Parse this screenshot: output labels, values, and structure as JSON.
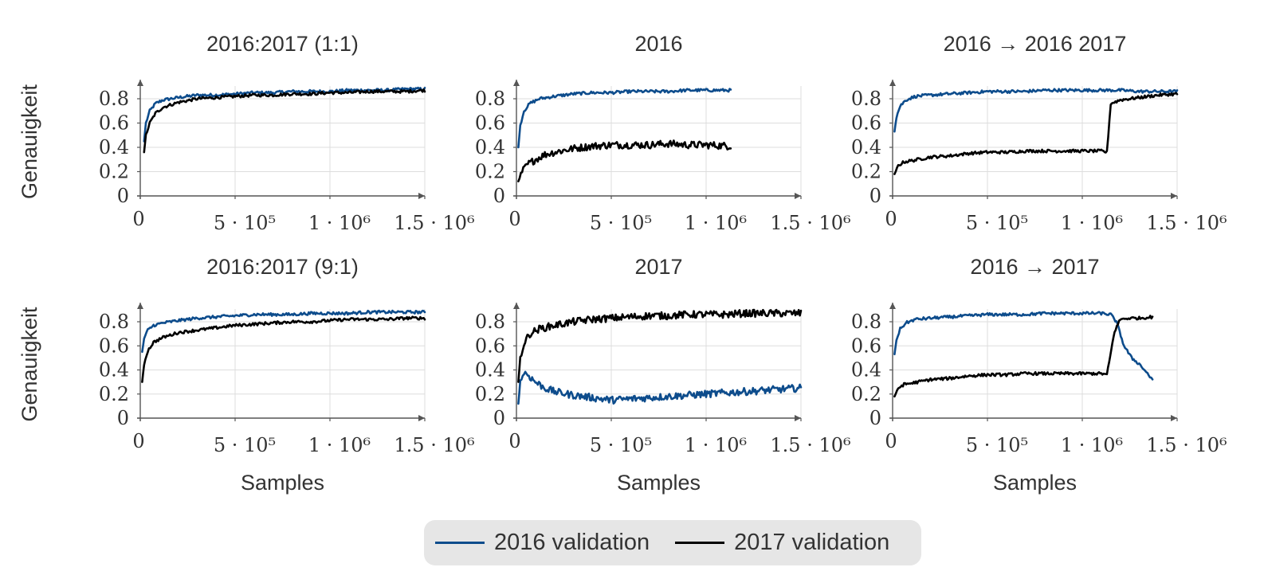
{
  "colors": {
    "2016": "#0d4c8c",
    "2017": "#000000",
    "grid": "#dddddd",
    "axis": "#555555",
    "text": "#333333"
  },
  "legend": {
    "placement": "bottom-center",
    "entries": [
      {
        "label": "2016 validation",
        "color": "#0d4c8c"
      },
      {
        "label": "2017 validation",
        "color": "#000000"
      }
    ]
  },
  "chart_data": [
    {
      "type": "line",
      "id": "p11",
      "title": "2016:2017 (1:1)",
      "ylabel": "Genauigkeit",
      "xlabel": "",
      "xlim": [
        0,
        1500000
      ],
      "ylim": [
        0,
        0.92
      ],
      "xticks": [
        0,
        500000,
        1000000,
        1500000
      ],
      "xtick_labels": [
        "0",
        "5 · 10⁵",
        "1 · 10⁶",
        "1.5 · 10⁶"
      ],
      "yticks": [
        0,
        0.2,
        0.4,
        0.6,
        0.8
      ],
      "ytick_labels": [
        "0",
        "0.2",
        "0.4",
        "0.6",
        "0.8"
      ],
      "grid": true,
      "series": [
        {
          "name": "2016 validation",
          "color": "#0d4c8c",
          "x": [
            20000,
            30000,
            50000,
            80000,
            120000,
            200000,
            300000,
            400000,
            500000,
            600000,
            700000,
            800000,
            900000,
            1000000,
            1100000,
            1200000,
            1300000,
            1400000,
            1500000
          ],
          "y": [
            0.45,
            0.6,
            0.7,
            0.76,
            0.79,
            0.81,
            0.83,
            0.83,
            0.84,
            0.85,
            0.85,
            0.86,
            0.86,
            0.86,
            0.87,
            0.87,
            0.87,
            0.88,
            0.88
          ]
        },
        {
          "name": "2017 validation",
          "color": "#000000",
          "x": [
            20000,
            30000,
            50000,
            80000,
            120000,
            200000,
            300000,
            400000,
            500000,
            600000,
            700000,
            800000,
            900000,
            1000000,
            1100000,
            1200000,
            1300000,
            1400000,
            1500000
          ],
          "y": [
            0.36,
            0.5,
            0.6,
            0.68,
            0.73,
            0.77,
            0.8,
            0.81,
            0.82,
            0.83,
            0.83,
            0.84,
            0.84,
            0.85,
            0.85,
            0.86,
            0.86,
            0.86,
            0.87
          ]
        }
      ]
    },
    {
      "type": "line",
      "id": "p12",
      "title": "2016",
      "ylabel": "",
      "xlabel": "",
      "xlim": [
        0,
        1500000
      ],
      "ylim": [
        0,
        0.92
      ],
      "xticks": [
        0,
        500000,
        1000000,
        1500000
      ],
      "xtick_labels": [
        "0",
        "5 · 10⁵",
        "1 · 10⁶",
        "1.5 · 10⁶"
      ],
      "yticks": [
        0,
        0.2,
        0.4,
        0.6,
        0.8
      ],
      "ytick_labels": [
        "0",
        "0.2",
        "0.4",
        "0.6",
        "0.8"
      ],
      "grid": true,
      "series": [
        {
          "name": "2016 validation",
          "color": "#0d4c8c",
          "x": [
            10000,
            20000,
            40000,
            70000,
            120000,
            200000,
            300000,
            400000,
            500000,
            600000,
            700000,
            800000,
            900000,
            1000000,
            1130000
          ],
          "y": [
            0.4,
            0.58,
            0.7,
            0.76,
            0.8,
            0.82,
            0.84,
            0.85,
            0.85,
            0.86,
            0.86,
            0.86,
            0.87,
            0.87,
            0.87
          ]
        },
        {
          "name": "2017 validation",
          "color": "#000000",
          "x": [
            10000,
            30000,
            60000,
            100000,
            150000,
            200000,
            300000,
            400000,
            500000,
            600000,
            700000,
            800000,
            900000,
            1000000,
            1130000
          ],
          "y": [
            0.12,
            0.2,
            0.26,
            0.3,
            0.34,
            0.36,
            0.39,
            0.41,
            0.42,
            0.42,
            0.42,
            0.43,
            0.42,
            0.42,
            0.41
          ]
        }
      ]
    },
    {
      "type": "line",
      "id": "p13",
      "title": "2016 → 2016 2017",
      "ylabel": "",
      "xlabel": "",
      "xlim": [
        0,
        1500000
      ],
      "ylim": [
        0,
        0.92
      ],
      "xticks": [
        0,
        500000,
        1000000,
        1500000
      ],
      "xtick_labels": [
        "0",
        "5 · 10⁵",
        "1 · 10⁶",
        "1.5 · 10⁶"
      ],
      "yticks": [
        0,
        0.2,
        0.4,
        0.6,
        0.8
      ],
      "ytick_labels": [
        "0",
        "0.2",
        "0.4",
        "0.6",
        "0.8"
      ],
      "grid": true,
      "series": [
        {
          "name": "2016 validation",
          "color": "#0d4c8c",
          "x": [
            10000,
            20000,
            40000,
            70000,
            120000,
            200000,
            300000,
            400000,
            500000,
            600000,
            700000,
            800000,
            900000,
            1000000,
            1100000,
            1200000,
            1300000,
            1400000,
            1500000
          ],
          "y": [
            0.53,
            0.65,
            0.74,
            0.79,
            0.82,
            0.83,
            0.84,
            0.85,
            0.86,
            0.86,
            0.86,
            0.87,
            0.87,
            0.87,
            0.87,
            0.87,
            0.86,
            0.86,
            0.86
          ]
        },
        {
          "name": "2017 validation",
          "color": "#000000",
          "x": [
            10000,
            30000,
            60000,
            100000,
            200000,
            300000,
            400000,
            500000,
            600000,
            700000,
            800000,
            900000,
            1000000,
            1100000,
            1130000,
            1150000,
            1200000,
            1300000,
            1400000,
            1500000
          ],
          "y": [
            0.18,
            0.25,
            0.28,
            0.29,
            0.32,
            0.33,
            0.35,
            0.36,
            0.36,
            0.37,
            0.37,
            0.37,
            0.37,
            0.37,
            0.36,
            0.76,
            0.79,
            0.81,
            0.83,
            0.84
          ]
        }
      ]
    },
    {
      "type": "line",
      "id": "p21",
      "title": "2016:2017 (9:1)",
      "ylabel": "Genauigkeit",
      "xlabel": "Samples",
      "xlim": [
        0,
        1500000
      ],
      "ylim": [
        0,
        0.92
      ],
      "xticks": [
        0,
        500000,
        1000000,
        1500000
      ],
      "xtick_labels": [
        "0",
        "5 · 10⁵",
        "1 · 10⁶",
        "1.5 · 10⁶"
      ],
      "yticks": [
        0,
        0.2,
        0.4,
        0.6,
        0.8
      ],
      "ytick_labels": [
        "0",
        "0.2",
        "0.4",
        "0.6",
        "0.8"
      ],
      "grid": true,
      "series": [
        {
          "name": "2016 validation",
          "color": "#0d4c8c",
          "x": [
            10000,
            20000,
            40000,
            70000,
            120000,
            200000,
            300000,
            400000,
            500000,
            600000,
            700000,
            800000,
            900000,
            1000000,
            1100000,
            1200000,
            1300000,
            1400000,
            1500000
          ],
          "y": [
            0.55,
            0.66,
            0.73,
            0.77,
            0.79,
            0.81,
            0.83,
            0.84,
            0.85,
            0.86,
            0.86,
            0.86,
            0.87,
            0.87,
            0.87,
            0.88,
            0.88,
            0.88,
            0.88
          ]
        },
        {
          "name": "2017 validation",
          "color": "#000000",
          "x": [
            10000,
            20000,
            40000,
            70000,
            120000,
            200000,
            300000,
            400000,
            500000,
            600000,
            700000,
            800000,
            900000,
            1000000,
            1100000,
            1200000,
            1300000,
            1400000,
            1500000
          ],
          "y": [
            0.3,
            0.45,
            0.56,
            0.63,
            0.67,
            0.71,
            0.73,
            0.75,
            0.77,
            0.78,
            0.79,
            0.8,
            0.8,
            0.81,
            0.82,
            0.82,
            0.82,
            0.83,
            0.83
          ]
        }
      ]
    },
    {
      "type": "line",
      "id": "p22",
      "title": "2017",
      "ylabel": "",
      "xlabel": "Samples",
      "xlim": [
        0,
        1500000
      ],
      "ylim": [
        0,
        0.92
      ],
      "xticks": [
        0,
        500000,
        1000000,
        1500000
      ],
      "xtick_labels": [
        "0",
        "5 · 10⁵",
        "1 · 10⁶",
        "1.5 · 10⁶"
      ],
      "yticks": [
        0,
        0.2,
        0.4,
        0.6,
        0.8
      ],
      "ytick_labels": [
        "0",
        "0.2",
        "0.4",
        "0.6",
        "0.8"
      ],
      "grid": true,
      "series": [
        {
          "name": "2016 validation",
          "color": "#0d4c8c",
          "x": [
            10000,
            20000,
            40000,
            60000,
            100000,
            150000,
            200000,
            300000,
            400000,
            500000,
            600000,
            700000,
            800000,
            900000,
            1000000,
            1100000,
            1200000,
            1300000,
            1400000,
            1500000
          ],
          "y": [
            0.12,
            0.3,
            0.38,
            0.36,
            0.3,
            0.25,
            0.22,
            0.19,
            0.17,
            0.15,
            0.16,
            0.17,
            0.18,
            0.19,
            0.2,
            0.21,
            0.22,
            0.23,
            0.24,
            0.25
          ]
        },
        {
          "name": "2017 validation",
          "color": "#000000",
          "x": [
            10000,
            20000,
            40000,
            70000,
            120000,
            200000,
            300000,
            400000,
            500000,
            600000,
            700000,
            800000,
            900000,
            1000000,
            1100000,
            1200000,
            1300000,
            1400000,
            1500000
          ],
          "y": [
            0.3,
            0.5,
            0.62,
            0.7,
            0.74,
            0.77,
            0.8,
            0.82,
            0.83,
            0.84,
            0.85,
            0.85,
            0.86,
            0.86,
            0.86,
            0.87,
            0.87,
            0.87,
            0.87
          ]
        }
      ]
    },
    {
      "type": "line",
      "id": "p23",
      "title": "2016 → 2017",
      "ylabel": "",
      "xlabel": "Samples",
      "xlim": [
        0,
        1500000
      ],
      "ylim": [
        0,
        0.92
      ],
      "xticks": [
        0,
        500000,
        1000000,
        1500000
      ],
      "xtick_labels": [
        "0",
        "5 · 10⁵",
        "1 · 10⁶",
        "1.5 · 10⁶"
      ],
      "yticks": [
        0,
        0.2,
        0.4,
        0.6,
        0.8
      ],
      "ytick_labels": [
        "0",
        "0.2",
        "0.4",
        "0.6",
        "0.8"
      ],
      "grid": true,
      "series": [
        {
          "name": "2016 validation",
          "color": "#0d4c8c",
          "x": [
            10000,
            20000,
            40000,
            70000,
            120000,
            200000,
            300000,
            400000,
            500000,
            600000,
            700000,
            800000,
            900000,
            1000000,
            1100000,
            1150000,
            1180000,
            1220000,
            1260000,
            1300000,
            1350000,
            1370000
          ],
          "y": [
            0.53,
            0.65,
            0.74,
            0.79,
            0.82,
            0.83,
            0.84,
            0.85,
            0.86,
            0.86,
            0.86,
            0.87,
            0.87,
            0.87,
            0.87,
            0.86,
            0.8,
            0.6,
            0.5,
            0.45,
            0.36,
            0.31
          ]
        },
        {
          "name": "2017 validation",
          "color": "#000000",
          "x": [
            10000,
            30000,
            60000,
            100000,
            200000,
            300000,
            400000,
            500000,
            600000,
            700000,
            800000,
            900000,
            1000000,
            1100000,
            1130000,
            1170000,
            1200000,
            1250000,
            1300000,
            1370000
          ],
          "y": [
            0.18,
            0.25,
            0.28,
            0.29,
            0.32,
            0.33,
            0.35,
            0.36,
            0.36,
            0.37,
            0.37,
            0.37,
            0.37,
            0.37,
            0.36,
            0.72,
            0.82,
            0.83,
            0.83,
            0.84
          ]
        }
      ]
    }
  ]
}
